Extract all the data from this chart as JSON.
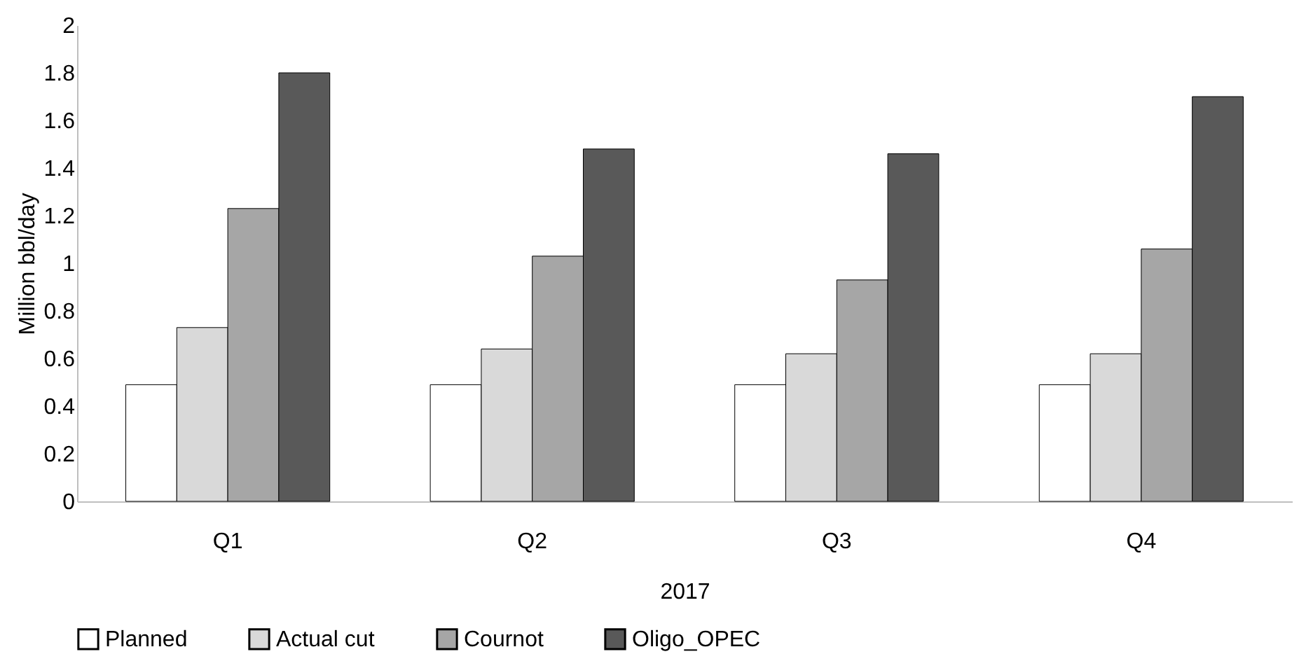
{
  "chart_data": {
    "type": "bar",
    "xlabel": "2017",
    "ylabel": "Million bbl/day",
    "categories": [
      "Q1",
      "Q2",
      "Q3",
      "Q4"
    ],
    "series": [
      {
        "name": "Planned",
        "color": "#ffffff",
        "values": [
          0.49,
          0.49,
          0.49,
          0.49
        ]
      },
      {
        "name": "Actual cut",
        "color": "#d9d9d9",
        "values": [
          0.73,
          0.64,
          0.62,
          0.62
        ]
      },
      {
        "name": "Cournot",
        "color": "#a6a6a6",
        "values": [
          1.23,
          1.03,
          0.93,
          1.06
        ]
      },
      {
        "name": "Oligo_OPEC",
        "color": "#595959",
        "values": [
          1.8,
          1.48,
          1.46,
          1.7
        ]
      }
    ],
    "ylim": [
      0,
      2
    ],
    "yticks": [
      0,
      0.2,
      0.4,
      0.6,
      0.8,
      1,
      1.2,
      1.4,
      1.6,
      1.8,
      2
    ],
    "grid": false,
    "legend": "bottom"
  }
}
